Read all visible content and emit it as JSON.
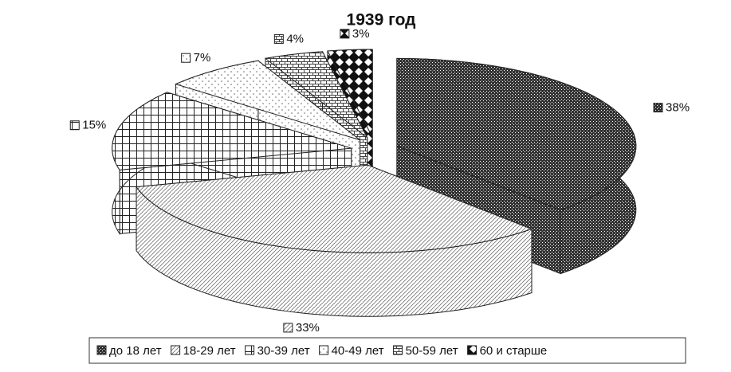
{
  "chart_data": {
    "type": "pie3d",
    "title": "1939 год",
    "categories": [
      "до 18 лет",
      "18-29 лет",
      "30-39 лет",
      "40-49 лет",
      "50-59 лет",
      "60 и старше"
    ],
    "values": [
      38,
      33,
      15,
      7,
      4,
      3
    ],
    "value_labels": [
      "38%",
      "33%",
      "15%",
      "7%",
      "4%",
      "3%"
    ],
    "colors": [
      "#333333",
      "#777777",
      "#222222",
      "#666666",
      "#444444",
      "#111111"
    ],
    "legend": "bottom"
  }
}
